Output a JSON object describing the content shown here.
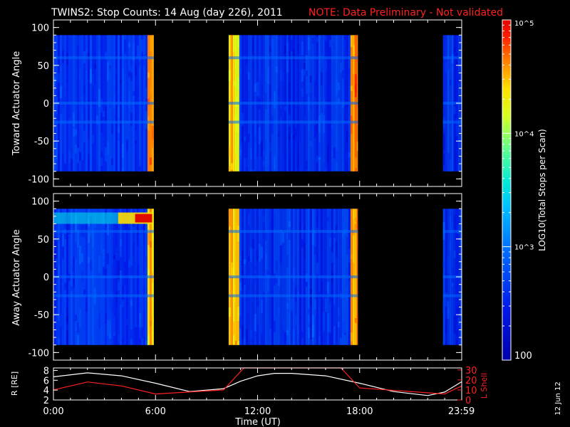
{
  "title": "TWINS2: Stop Counts: 14 Aug (day 226), 2011",
  "note": "NOTE: Data Preliminary - Not validated",
  "date_stamp": "12 Jun 12",
  "colorbar": {
    "label": "LOG10(Total Stops per Scan)",
    "ticks": [
      "10^5",
      "10^4",
      "10^3",
      "100"
    ]
  },
  "colors": {
    "background": "#000000",
    "frame": "#ffffff",
    "accent": "#ff2020"
  },
  "chart_data": [
    {
      "type": "heatmap",
      "name": "toward",
      "ylabel": "Toward Actuator Angle",
      "ylim": [
        -110,
        110
      ],
      "yticks": [
        100,
        50,
        0,
        -50,
        -100
      ],
      "xlim": [
        0,
        24
      ],
      "data_y_range": [
        -90,
        90
      ],
      "color_scale": "log",
      "value_range": [
        100,
        100000
      ],
      "coverage_hours": [
        [
          0.0,
          5.9
        ],
        [
          10.3,
          17.9
        ],
        [
          22.9,
          24.0
        ]
      ],
      "typical_log_counts": 2.6,
      "features": [
        {
          "x": [
            5.45,
            5.9
          ],
          "log_counts": 4.7
        },
        {
          "x": [
            10.3,
            10.9
          ],
          "log_counts": 4.6
        },
        {
          "x": [
            17.4,
            17.9
          ],
          "log_counts": 4.8
        }
      ]
    },
    {
      "type": "heatmap",
      "name": "away",
      "ylabel": "Away Actuator Angle",
      "ylim": [
        -110,
        110
      ],
      "yticks": [
        100,
        50,
        0,
        -50,
        -100
      ],
      "xlim": [
        0,
        24
      ],
      "data_y_range": [
        -90,
        90
      ],
      "color_scale": "log",
      "value_range": [
        100,
        100000
      ],
      "coverage_hours": [
        [
          0.0,
          5.9
        ],
        [
          10.3,
          17.9
        ],
        [
          22.9,
          24.0
        ]
      ],
      "typical_log_counts": 2.6,
      "features": [
        {
          "x": [
            3.8,
            5.8
          ],
          "y": [
            70,
            85
          ],
          "log_counts": 5.0
        },
        {
          "x": [
            5.45,
            5.9
          ],
          "log_counts": 4.7
        },
        {
          "x": [
            10.3,
            10.9
          ],
          "log_counts": 4.6
        },
        {
          "x": [
            17.4,
            17.9
          ],
          "log_counts": 4.8
        }
      ]
    },
    {
      "type": "line",
      "name": "ephemeris",
      "ylabel": "R [RE]",
      "y2label": "L Shell",
      "xlabel": "Time (UT)",
      "xlim": [
        0,
        24
      ],
      "xticks": [
        "0:00",
        "6:00",
        "12:00",
        "18:00",
        "23:59"
      ],
      "xtick_hours": [
        0,
        6,
        12,
        18,
        23.983
      ],
      "yticks": [
        2,
        4,
        6,
        8
      ],
      "ylim": [
        2,
        8.5
      ],
      "y2ticks": [
        0,
        10,
        20,
        30
      ],
      "y2lim": [
        0,
        32
      ],
      "series": [
        {
          "name": "R",
          "color": "#ffffff",
          "x": [
            0,
            2,
            4,
            6,
            8,
            10,
            11,
            12,
            13,
            14,
            16,
            18,
            20,
            22,
            23,
            24
          ],
          "y": [
            6.7,
            7.5,
            6.9,
            5.4,
            3.7,
            4.3,
            5.8,
            6.9,
            7.4,
            7.4,
            6.9,
            5.4,
            3.7,
            2.9,
            3.6,
            5.7
          ]
        },
        {
          "name": "L Shell",
          "color": "#ff2020",
          "x": [
            0,
            2,
            4,
            6,
            10,
            11.2,
            16.9,
            18,
            23,
            24
          ],
          "y": [
            10,
            18,
            14,
            6,
            10,
            32,
            32,
            12,
            6,
            14
          ]
        }
      ]
    }
  ]
}
